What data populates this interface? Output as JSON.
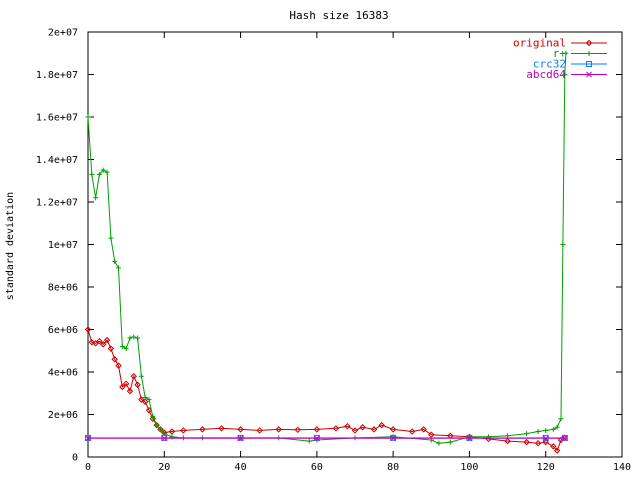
{
  "chart_data": {
    "type": "line",
    "title": "Hash size 16383",
    "xlabel": "",
    "ylabel": "standard deviation",
    "xlim": [
      0,
      140
    ],
    "ylim": [
      0,
      20000000
    ],
    "x_ticks": [
      {
        "value": 0,
        "label": "0"
      },
      {
        "value": 20,
        "label": "20"
      },
      {
        "value": 40,
        "label": "40"
      },
      {
        "value": 60,
        "label": "60"
      },
      {
        "value": 80,
        "label": "80"
      },
      {
        "value": 100,
        "label": "100"
      },
      {
        "value": 120,
        "label": "120"
      },
      {
        "value": 140,
        "label": "140"
      }
    ],
    "y_ticks": [
      {
        "value": 0,
        "label": "0"
      },
      {
        "value": 2000000,
        "label": "2e+06"
      },
      {
        "value": 4000000,
        "label": "4e+06"
      },
      {
        "value": 6000000,
        "label": "6e+06"
      },
      {
        "value": 8000000,
        "label": "8e+06"
      },
      {
        "value": 10000000,
        "label": "1e+07"
      },
      {
        "value": 12000000,
        "label": "1.2e+07"
      },
      {
        "value": 14000000,
        "label": "1.4e+07"
      },
      {
        "value": 16000000,
        "label": "1.6e+07"
      },
      {
        "value": 18000000,
        "label": "1.8e+07"
      },
      {
        "value": 20000000,
        "label": "2e+07"
      }
    ],
    "grid": false,
    "legend_position": "top-right",
    "series": [
      {
        "name": "original",
        "color": "#cc0000",
        "marker": "diamond",
        "points": [
          [
            0,
            6000000
          ],
          [
            1,
            5400000
          ],
          [
            2,
            5350000
          ],
          [
            3,
            5450000
          ],
          [
            4,
            5300000
          ],
          [
            5,
            5500000
          ],
          [
            6,
            5100000
          ],
          [
            7,
            4600000
          ],
          [
            8,
            4300000
          ],
          [
            9,
            3300000
          ],
          [
            10,
            3450000
          ],
          [
            11,
            3100000
          ],
          [
            12,
            3800000
          ],
          [
            13,
            3400000
          ],
          [
            14,
            2700000
          ],
          [
            15,
            2600000
          ],
          [
            16,
            2200000
          ],
          [
            17,
            1800000
          ],
          [
            18,
            1500000
          ],
          [
            19,
            1300000
          ],
          [
            20,
            1150000
          ],
          [
            22,
            1200000
          ],
          [
            25,
            1250000
          ],
          [
            30,
            1300000
          ],
          [
            35,
            1350000
          ],
          [
            40,
            1300000
          ],
          [
            45,
            1250000
          ],
          [
            50,
            1300000
          ],
          [
            55,
            1280000
          ],
          [
            60,
            1300000
          ],
          [
            65,
            1350000
          ],
          [
            68,
            1450000
          ],
          [
            70,
            1250000
          ],
          [
            72,
            1400000
          ],
          [
            75,
            1300000
          ],
          [
            77,
            1500000
          ],
          [
            80,
            1300000
          ],
          [
            85,
            1200000
          ],
          [
            88,
            1300000
          ],
          [
            90,
            1050000
          ],
          [
            95,
            1000000
          ],
          [
            100,
            950000
          ],
          [
            105,
            850000
          ],
          [
            110,
            750000
          ],
          [
            115,
            700000
          ],
          [
            118,
            650000
          ],
          [
            120,
            700000
          ],
          [
            122,
            500000
          ],
          [
            123,
            300000
          ],
          [
            124,
            800000
          ],
          [
            125,
            900000
          ]
        ]
      },
      {
        "name": "r+",
        "color": "#00a000",
        "marker": "plus",
        "points": [
          [
            0,
            16000000
          ],
          [
            1,
            13300000
          ],
          [
            2,
            12200000
          ],
          [
            3,
            13300000
          ],
          [
            4,
            13500000
          ],
          [
            5,
            13400000
          ],
          [
            6,
            10300000
          ],
          [
            7,
            9200000
          ],
          [
            8,
            8900000
          ],
          [
            9,
            5200000
          ],
          [
            10,
            5100000
          ],
          [
            11,
            5600000
          ],
          [
            12,
            5650000
          ],
          [
            13,
            5600000
          ],
          [
            14,
            3800000
          ],
          [
            15,
            2800000
          ],
          [
            16,
            2700000
          ],
          [
            17,
            1900000
          ],
          [
            18,
            1500000
          ],
          [
            19,
            1300000
          ],
          [
            20,
            1100000
          ],
          [
            22,
            950000
          ],
          [
            25,
            900000
          ],
          [
            30,
            900000
          ],
          [
            40,
            900000
          ],
          [
            50,
            900000
          ],
          [
            58,
            750000
          ],
          [
            60,
            800000
          ],
          [
            70,
            900000
          ],
          [
            80,
            950000
          ],
          [
            90,
            800000
          ],
          [
            92,
            650000
          ],
          [
            95,
            700000
          ],
          [
            100,
            950000
          ],
          [
            105,
            950000
          ],
          [
            110,
            1000000
          ],
          [
            115,
            1100000
          ],
          [
            118,
            1200000
          ],
          [
            120,
            1250000
          ],
          [
            122,
            1300000
          ],
          [
            123,
            1400000
          ],
          [
            124,
            1800000
          ],
          [
            124.5,
            10000000
          ],
          [
            125,
            18000000
          ],
          [
            125.3,
            19000000
          ]
        ]
      },
      {
        "name": "crc32",
        "color": "#0080ff",
        "marker": "square",
        "points": [
          [
            0,
            900000
          ],
          [
            20,
            900000
          ],
          [
            40,
            900000
          ],
          [
            60,
            900000
          ],
          [
            80,
            900000
          ],
          [
            100,
            900000
          ],
          [
            120,
            900000
          ],
          [
            125,
            900000
          ]
        ]
      },
      {
        "name": "abcd64",
        "color": "#c000c0",
        "marker": "cross",
        "points": [
          [
            0,
            880000
          ],
          [
            20,
            880000
          ],
          [
            40,
            880000
          ],
          [
            60,
            880000
          ],
          [
            80,
            880000
          ],
          [
            100,
            880000
          ],
          [
            120,
            880000
          ],
          [
            125,
            880000
          ]
        ]
      }
    ]
  }
}
